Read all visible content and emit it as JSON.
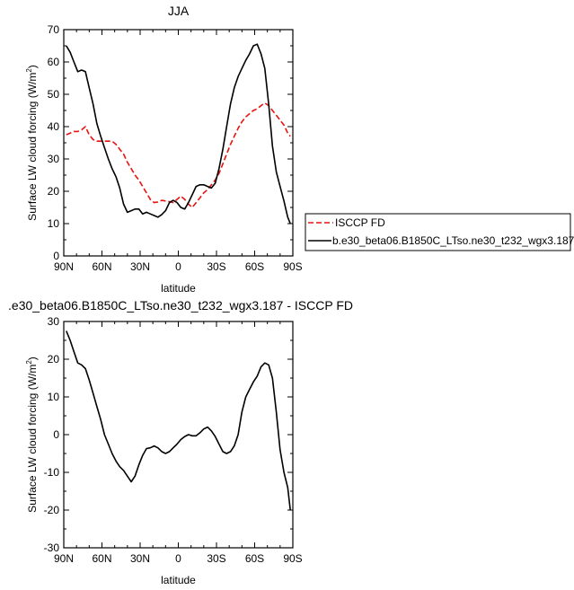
{
  "chart_data": [
    {
      "type": "line",
      "title": "JJA",
      "xlabel": "latitude",
      "ylabel_main": "Surface LW cloud forcing (W/m",
      "ylabel_sup": "2",
      "ylabel_tail": ")",
      "xlim": [
        90,
        -90
      ],
      "ylim": [
        0,
        70
      ],
      "xticks": [
        90,
        60,
        30,
        0,
        -30,
        -60,
        -90
      ],
      "xtick_labels": [
        "90N",
        "60N",
        "30N",
        "0",
        "30S",
        "60S",
        "90S"
      ],
      "yticks": [
        0,
        10,
        20,
        30,
        40,
        50,
        60,
        70
      ],
      "ytick_labels": [
        "0",
        "10",
        "20",
        "30",
        "40",
        "50",
        "60",
        "70"
      ],
      "legend_position": "right, outside plot",
      "series": [
        {
          "name": "ISCCP FD",
          "color": "#e8130f",
          "dash": "dashed",
          "x": [
            88,
            85,
            82,
            79,
            76,
            73,
            70,
            67,
            64,
            61,
            58,
            55,
            52,
            49,
            46,
            43,
            40,
            37,
            34,
            31,
            28,
            25,
            22,
            19,
            16,
            13,
            10,
            7,
            4,
            1,
            -2,
            -5,
            -8,
            -11,
            -14,
            -17,
            -20,
            -23,
            -26,
            -29,
            -32,
            -35,
            -38,
            -41,
            -44,
            -47,
            -50,
            -53,
            -56,
            -59,
            -62,
            -65,
            -68,
            -71,
            -74,
            -77,
            -80,
            -83,
            -86,
            -88
          ],
          "y": [
            37.5,
            38,
            38.5,
            38.5,
            39,
            40,
            37.5,
            36,
            35.5,
            35.5,
            35.5,
            35.5,
            35.5,
            34.5,
            33,
            31.5,
            29,
            27,
            25,
            23.5,
            21.5,
            19.5,
            17.5,
            16.5,
            16.7,
            17.2,
            17,
            16.8,
            16.5,
            17.5,
            18.5,
            17.5,
            16,
            15,
            16.5,
            18,
            19.5,
            20.5,
            22,
            23.5,
            25.5,
            28.5,
            31.5,
            34.5,
            37,
            39.5,
            41.5,
            43,
            44,
            45,
            45.5,
            46.5,
            47.3,
            46.5,
            45,
            43.5,
            42,
            40.5,
            38,
            37
          ]
        },
        {
          "name": "b.e30_beta06.B1850C_LTso.ne30_t232_wgx3.187",
          "color": "#000000",
          "dash": "solid",
          "x": [
            88,
            85,
            82,
            79,
            76,
            73,
            70,
            67,
            64,
            61,
            58,
            55,
            52,
            49,
            46,
            43,
            40,
            37,
            34,
            31,
            28,
            25,
            22,
            19,
            16,
            13,
            10,
            7,
            4,
            1,
            -2,
            -5,
            -8,
            -11,
            -14,
            -17,
            -20,
            -23,
            -26,
            -29,
            -32,
            -35,
            -38,
            -41,
            -44,
            -47,
            -50,
            -53,
            -56,
            -59,
            -62,
            -65,
            -68,
            -71,
            -74,
            -77,
            -80,
            -83,
            -86,
            -88
          ],
          "y": [
            65,
            63,
            60,
            57,
            57.5,
            57,
            52,
            47,
            41,
            37,
            33.5,
            30,
            27,
            24.5,
            21,
            16,
            13.5,
            14,
            14.5,
            14.5,
            13,
            13.5,
            13,
            12.5,
            12,
            12.8,
            14,
            16.5,
            17.2,
            16.5,
            15,
            14.5,
            16.5,
            19,
            21.5,
            22,
            22,
            21.5,
            21,
            22.5,
            27,
            33,
            40,
            47,
            52,
            55.5,
            58,
            60.5,
            62.5,
            65,
            65.5,
            62.5,
            58,
            47,
            34,
            26,
            21.5,
            17,
            12,
            10
          ]
        }
      ]
    },
    {
      "type": "line",
      "title": ".e30_beta06.B1850C_LTso.ne30_t232_wgx3.187 - ISCCP FD",
      "xlabel": "latitude",
      "ylabel_main": "Surface LW cloud forcing (W/m",
      "ylabel_sup": "2",
      "ylabel_tail": ")",
      "xlim": [
        90,
        -90
      ],
      "ylim": [
        -30,
        30
      ],
      "xticks": [
        90,
        60,
        30,
        0,
        -30,
        -60,
        -90
      ],
      "xtick_labels": [
        "90N",
        "60N",
        "30N",
        "0",
        "30S",
        "60S",
        "90S"
      ],
      "yticks": [
        -30,
        -20,
        -10,
        0,
        10,
        20,
        30
      ],
      "ytick_labels": [
        "-30",
        "-20",
        "-10",
        "0",
        "10",
        "20",
        "30"
      ],
      "series": [
        {
          "color": "#000000",
          "dash": "solid",
          "x": [
            88,
            85,
            82,
            79,
            76,
            73,
            70,
            67,
            64,
            61,
            58,
            55,
            52,
            49,
            46,
            43,
            40,
            37,
            34,
            31,
            28,
            25,
            22,
            19,
            16,
            13,
            10,
            7,
            4,
            1,
            -2,
            -5,
            -8,
            -11,
            -14,
            -17,
            -20,
            -23,
            -26,
            -29,
            -32,
            -35,
            -38,
            -41,
            -44,
            -47,
            -50,
            -53,
            -56,
            -59,
            -62,
            -65,
            -68,
            -71,
            -74,
            -77,
            -80,
            -83,
            -86,
            -88
          ],
          "y": [
            27.5,
            25,
            22,
            19,
            18.5,
            17.5,
            14.5,
            11,
            7.5,
            4,
            0,
            -2.5,
            -5,
            -7,
            -8.5,
            -9.5,
            -11,
            -12.5,
            -11,
            -8,
            -5.5,
            -3.7,
            -3.5,
            -3,
            -3.5,
            -4.5,
            -5,
            -4.5,
            -3.5,
            -2.5,
            -1.3,
            -0.5,
            0,
            -0.3,
            -0.3,
            0.5,
            1.5,
            2,
            1,
            -0.5,
            -2.5,
            -4.5,
            -5,
            -4.5,
            -3,
            0,
            6,
            10,
            12,
            14,
            15.5,
            18,
            19,
            18.5,
            15,
            6,
            -4,
            -10,
            -14,
            -20
          ]
        }
      ]
    }
  ]
}
